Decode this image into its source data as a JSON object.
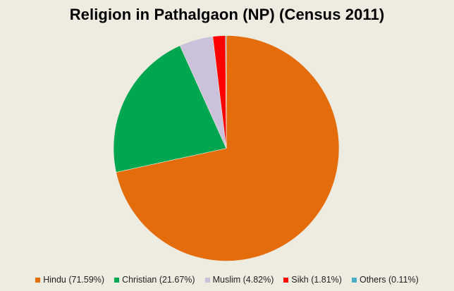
{
  "chart_data": {
    "type": "pie",
    "title": "Religion in Pathalgaon (NP) (Census 2011)",
    "categories": [
      "Hindu",
      "Christian",
      "Muslim",
      "Sikh",
      "Others"
    ],
    "values": [
      71.59,
      21.67,
      4.82,
      1.81,
      0.11
    ],
    "colors": [
      "#e46c0a",
      "#00a650",
      "#ccc1da",
      "#ff0000",
      "#4bacc6"
    ],
    "legend": [
      {
        "label": "Hindu (71.59%)",
        "color": "#e46c0a"
      },
      {
        "label": "Christian (21.67%)",
        "color": "#00a650"
      },
      {
        "label": "Muslim (4.82%)",
        "color": "#ccc1da"
      },
      {
        "label": "Sikh (1.81%)",
        "color": "#ff0000"
      },
      {
        "label": "Others (0.11%)",
        "color": "#4bacc6"
      }
    ],
    "legend_position": "bottom",
    "start_angle": "12 o'clock, clockwise"
  }
}
